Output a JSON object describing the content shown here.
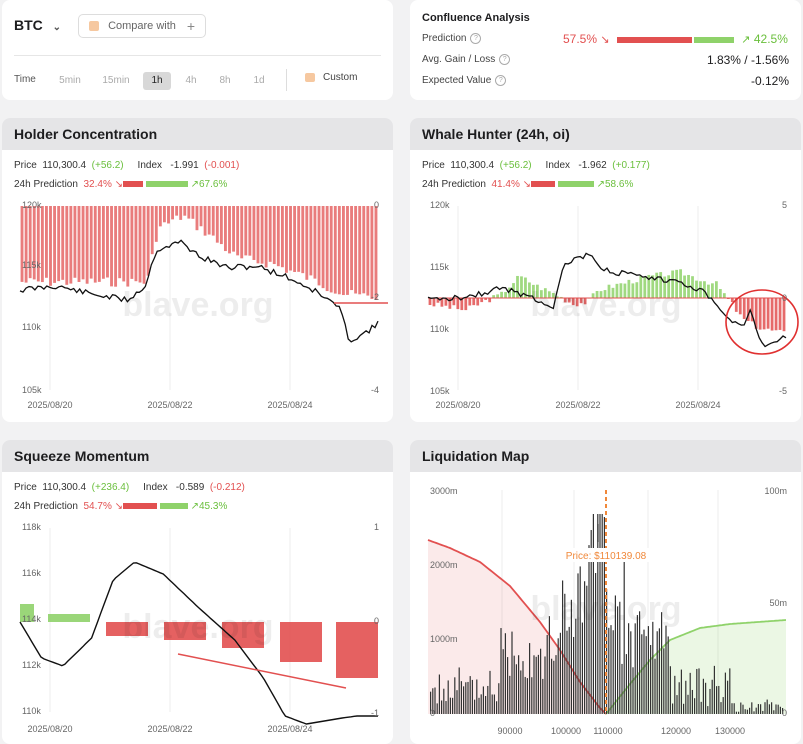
{
  "top_left": {
    "symbol": "BTC",
    "compare_label": "Compare with",
    "time_label": "Time",
    "timeframes": [
      "5min",
      "15min",
      "1h",
      "4h",
      "8h",
      "1d"
    ],
    "active_timeframe": "1h",
    "custom_label": "Custom"
  },
  "confluence": {
    "title": "Confluence Analysis",
    "prediction_label": "Prediction",
    "prediction_down": "57.5%",
    "prediction_up": "42.5%",
    "gain_loss_label": "Avg. Gain / Loss",
    "gain_loss_value": "1.83% / -1.56%",
    "expected_label": "Expected Value",
    "expected_value": "-0.12%"
  },
  "panels": {
    "holder": {
      "title": "Holder Concentration",
      "price_label": "Price",
      "price": "110,300.4",
      "price_change": "(+56.2)",
      "index_label": "Index",
      "index": "-1.991",
      "index_change": "(-0.001)",
      "pred_label": "24h Prediction",
      "pred_down": "32.4%",
      "pred_up": "67.6%",
      "y_left": [
        "120k",
        "115k",
        "110k",
        "105k"
      ],
      "y_right": [
        "0",
        "-2",
        "-4"
      ],
      "x_labels": [
        "2025/08/20",
        "2025/08/22",
        "2025/08/24"
      ],
      "watermark": "blave.org"
    },
    "whale": {
      "title": "Whale Hunter (24h, oi)",
      "price_label": "Price",
      "price": "110,300.4",
      "price_change": "(+56.2)",
      "index_label": "Index",
      "index": "-1.962",
      "index_change": "(+0.177)",
      "pred_label": "24h Prediction",
      "pred_down": "41.4%",
      "pred_up": "58.6%",
      "y_left": [
        "120k",
        "115k",
        "110k",
        "105k"
      ],
      "y_right": [
        "5",
        "0",
        "-5"
      ],
      "x_labels": [
        "2025/08/20",
        "2025/08/22",
        "2025/08/24"
      ],
      "watermark": "blave.org"
    },
    "squeeze": {
      "title": "Squeeze Momentum",
      "price_label": "Price",
      "price": "110,300.4",
      "price_change": "(+236.4)",
      "index_label": "Index",
      "index": "-0.589",
      "index_change": "(-0.212)",
      "pred_label": "24h Prediction",
      "pred_down": "54.7%",
      "pred_up": "45.3%",
      "y_left": [
        "118k",
        "116k",
        "114k",
        "112k",
        "110k"
      ],
      "y_right": [
        "1",
        "0",
        "-1"
      ],
      "x_labels": [
        "2025/08/20",
        "2025/08/22",
        "2025/08/24"
      ],
      "watermark": "blave.org"
    },
    "liquidation": {
      "title": "Liquidation Map",
      "y_left": [
        "3000m",
        "2000m",
        "1000m",
        "0"
      ],
      "y_right": [
        "100m",
        "50m",
        "0"
      ],
      "x_labels": [
        "90000",
        "100000",
        "110000",
        "120000",
        "130000"
      ],
      "price_label": "Price: $110139.08",
      "watermark": "blave.org"
    }
  },
  "colors": {
    "red": "#e25050",
    "green": "#6abf3c",
    "orange": "#f0883a"
  }
}
